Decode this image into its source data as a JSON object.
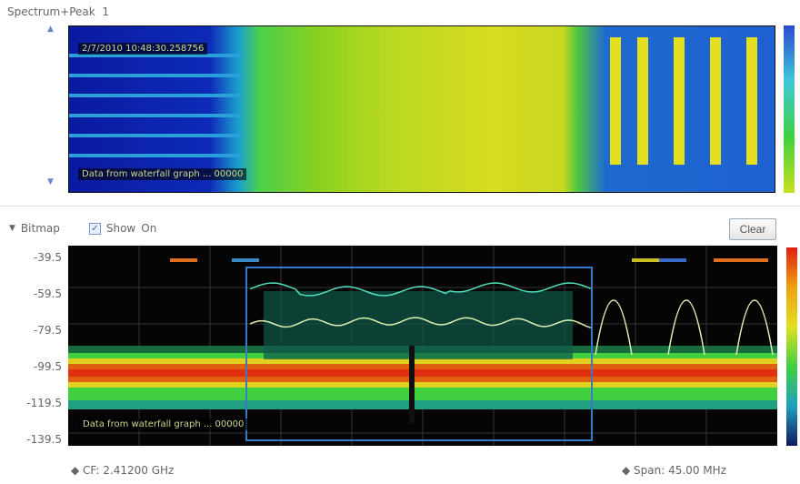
{
  "waterfall": {
    "title": "Spectrum+Peak",
    "index": "1",
    "timestamp": "2/7/2010 10:48:30.258756",
    "footer_text": "Data from waterfall graph ... 00000"
  },
  "bitmap": {
    "label": "Bitmap",
    "show_label": "Show",
    "show_checked": true,
    "state": "On",
    "clear_label": "Clear"
  },
  "plot": {
    "y_ticks": [
      "-39.5",
      "-59.5",
      "-79.5",
      "-99.5",
      "-119.5",
      "-139.5"
    ],
    "overlay_text": "Data from waterfall graph ... 00000"
  },
  "footer": {
    "cf": "CF: 2.41200 GHz",
    "span": "Span: 45.00 MHz"
  },
  "colors": {
    "background": "#050505",
    "band": "#e04010",
    "trace": "#40e0b0",
    "marker_box": "#3a78c8"
  }
}
